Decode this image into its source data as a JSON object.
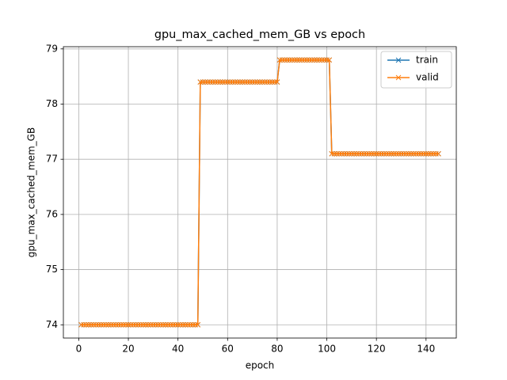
{
  "chart_data": {
    "type": "line",
    "title": "gpu_max_cached_mem_GB vs epoch",
    "x_label": "epoch",
    "y_label": "gpu_max_cached_mem_GB",
    "x": [
      1,
      2,
      3,
      4,
      5,
      6,
      7,
      8,
      9,
      10,
      11,
      12,
      13,
      14,
      15,
      16,
      17,
      18,
      19,
      20,
      21,
      22,
      23,
      24,
      25,
      26,
      27,
      28,
      29,
      30,
      31,
      32,
      33,
      34,
      35,
      36,
      37,
      38,
      39,
      40,
      41,
      42,
      43,
      44,
      45,
      46,
      47,
      48,
      49,
      50,
      51,
      52,
      53,
      54,
      55,
      56,
      57,
      58,
      59,
      60,
      61,
      62,
      63,
      64,
      65,
      66,
      67,
      68,
      69,
      70,
      71,
      72,
      73,
      74,
      75,
      76,
      77,
      78,
      79,
      80,
      81,
      82,
      83,
      84,
      85,
      86,
      87,
      88,
      89,
      90,
      91,
      92,
      93,
      94,
      95,
      96,
      97,
      98,
      99,
      100,
      101,
      102,
      103,
      104,
      105,
      106,
      107,
      108,
      109,
      110,
      111,
      112,
      113,
      114,
      115,
      116,
      117,
      118,
      119,
      120,
      121,
      122,
      123,
      124,
      125,
      126,
      127,
      128,
      129,
      130,
      131,
      132,
      133,
      134,
      135,
      136,
      137,
      138,
      139,
      140,
      141,
      142,
      143,
      144,
      145
    ],
    "series": [
      {
        "name": "train",
        "color": "#1f77b4",
        "values": [
          74,
          74,
          74,
          74,
          74,
          74,
          74,
          74,
          74,
          74,
          74,
          74,
          74,
          74,
          74,
          74,
          74,
          74,
          74,
          74,
          74,
          74,
          74,
          74,
          74,
          74,
          74,
          74,
          74,
          74,
          74,
          74,
          74,
          74,
          74,
          74,
          74,
          74,
          74,
          74,
          74,
          74,
          74,
          74,
          74,
          74,
          74,
          74,
          78.4,
          78.4,
          78.4,
          78.4,
          78.4,
          78.4,
          78.4,
          78.4,
          78.4,
          78.4,
          78.4,
          78.4,
          78.4,
          78.4,
          78.4,
          78.4,
          78.4,
          78.4,
          78.4,
          78.4,
          78.4,
          78.4,
          78.4,
          78.4,
          78.4,
          78.4,
          78.4,
          78.4,
          78.4,
          78.4,
          78.4,
          78.4,
          78.8,
          78.8,
          78.8,
          78.8,
          78.8,
          78.8,
          78.8,
          78.8,
          78.8,
          78.8,
          78.8,
          78.8,
          78.8,
          78.8,
          78.8,
          78.8,
          78.8,
          78.8,
          78.8,
          78.8,
          78.8,
          77.1,
          77.1,
          77.1,
          77.1,
          77.1,
          77.1,
          77.1,
          77.1,
          77.1,
          77.1,
          77.1,
          77.1,
          77.1,
          77.1,
          77.1,
          77.1,
          77.1,
          77.1,
          77.1,
          77.1,
          77.1,
          77.1,
          77.1,
          77.1,
          77.1,
          77.1,
          77.1,
          77.1,
          77.1,
          77.1,
          77.1,
          77.1,
          77.1,
          77.1,
          77.1,
          77.1,
          77.1,
          77.1,
          77.1,
          77.1,
          77.1,
          77.1,
          77.1,
          77.1
        ]
      },
      {
        "name": "valid",
        "color": "#ff7f0e",
        "values": [
          74,
          74,
          74,
          74,
          74,
          74,
          74,
          74,
          74,
          74,
          74,
          74,
          74,
          74,
          74,
          74,
          74,
          74,
          74,
          74,
          74,
          74,
          74,
          74,
          74,
          74,
          74,
          74,
          74,
          74,
          74,
          74,
          74,
          74,
          74,
          74,
          74,
          74,
          74,
          74,
          74,
          74,
          74,
          74,
          74,
          74,
          74,
          74,
          78.4,
          78.4,
          78.4,
          78.4,
          78.4,
          78.4,
          78.4,
          78.4,
          78.4,
          78.4,
          78.4,
          78.4,
          78.4,
          78.4,
          78.4,
          78.4,
          78.4,
          78.4,
          78.4,
          78.4,
          78.4,
          78.4,
          78.4,
          78.4,
          78.4,
          78.4,
          78.4,
          78.4,
          78.4,
          78.4,
          78.4,
          78.4,
          78.8,
          78.8,
          78.8,
          78.8,
          78.8,
          78.8,
          78.8,
          78.8,
          78.8,
          78.8,
          78.8,
          78.8,
          78.8,
          78.8,
          78.8,
          78.8,
          78.8,
          78.8,
          78.8,
          78.8,
          78.8,
          77.1,
          77.1,
          77.1,
          77.1,
          77.1,
          77.1,
          77.1,
          77.1,
          77.1,
          77.1,
          77.1,
          77.1,
          77.1,
          77.1,
          77.1,
          77.1,
          77.1,
          77.1,
          77.1,
          77.1,
          77.1,
          77.1,
          77.1,
          77.1,
          77.1,
          77.1,
          77.1,
          77.1,
          77.1,
          77.1,
          77.1,
          77.1,
          77.1,
          77.1,
          77.1,
          77.1,
          77.1,
          77.1,
          77.1,
          77.1,
          77.1,
          77.1,
          77.1,
          77.1
        ]
      }
    ],
    "xlim": [
      -6.2,
      152.2
    ],
    "xticks": [
      0,
      20,
      40,
      60,
      80,
      100,
      120,
      140
    ],
    "ylim": [
      73.76,
      79.04
    ],
    "yticks": [
      74,
      75,
      76,
      77,
      78,
      79
    ],
    "grid": true,
    "legend": "upper right"
  }
}
